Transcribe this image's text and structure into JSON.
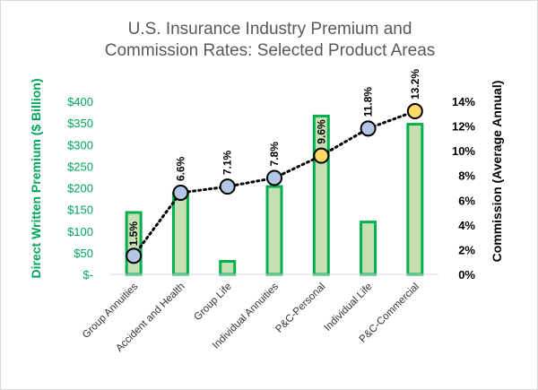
{
  "chart_data": {
    "type": "bar",
    "title_lines": [
      "U.S. Insurance Industry Premium and",
      "Commission Rates: Selected Product Areas"
    ],
    "categories": [
      "Group Annuities",
      "Accident and Health",
      "Group Life",
      "Individual Annuities",
      "P&C-Personal",
      "Individual Life",
      "P&C-Commercial"
    ],
    "series": [
      {
        "name": "Direct Written Premium ($ Billion)",
        "type": "bar",
        "axis": "left",
        "values": [
          143,
          188,
          30,
          203,
          366,
          121,
          347
        ],
        "color": "#c6e0b4",
        "edge_color": "#00b050"
      },
      {
        "name": "Commission (Average Annual)",
        "type": "line",
        "axis": "right",
        "values": [
          1.5,
          6.6,
          7.1,
          7.8,
          9.6,
          11.8,
          13.2
        ],
        "labels": [
          "1.5%",
          "6.6%",
          "7.1%",
          "7.8%",
          "9.6%",
          "11.8%",
          "13.2%"
        ],
        "marker_colors": [
          "#b4c7e7",
          "#b4c7e7",
          "#b4c7e7",
          "#b4c7e7",
          "#ffd966",
          "#b4c7e7",
          "#ffd966"
        ],
        "line_style": "dotted",
        "color": "#000000"
      }
    ],
    "ylabel_left": "Direct Written Premium ($ Billion)",
    "ylabel_right": "Commission (Average Annual)",
    "ylim_left": [
      0,
      400
    ],
    "ylim_right": [
      0,
      14
    ],
    "yticks_left": [
      "$-",
      "$50",
      "$100",
      "$150",
      "$200",
      "$250",
      "$300",
      "$350",
      "$400"
    ],
    "yticks_right": [
      "0%",
      "2%",
      "4%",
      "6%",
      "8%",
      "10%",
      "12%",
      "14%"
    ],
    "grid": false,
    "legend": "none"
  }
}
